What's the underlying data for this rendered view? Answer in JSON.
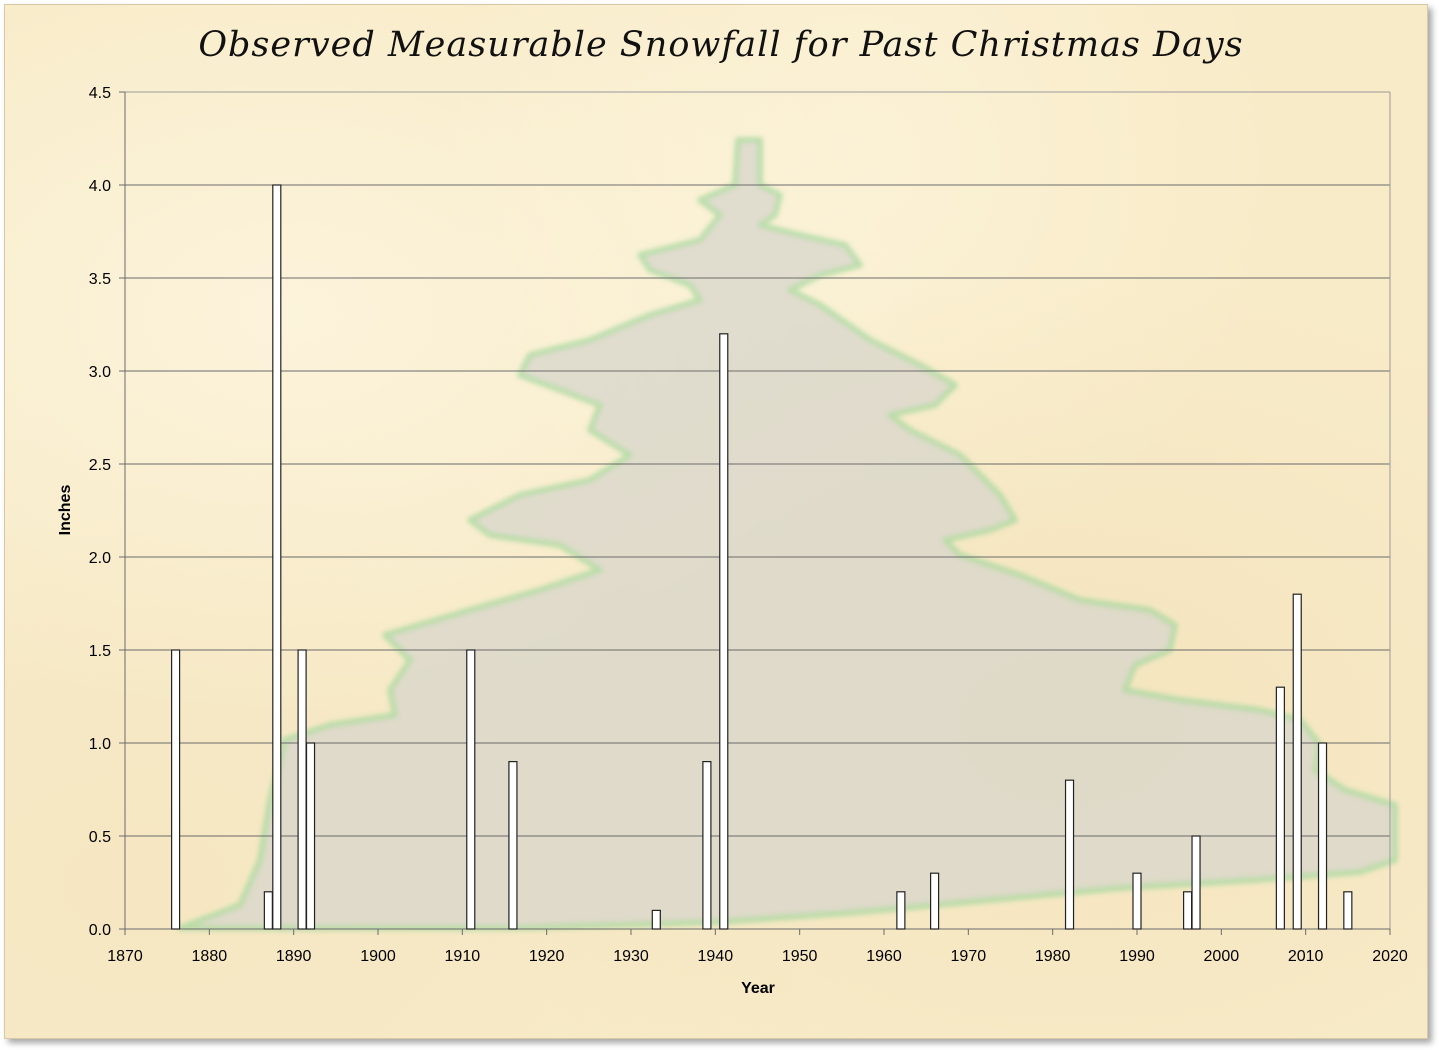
{
  "chart_data": {
    "type": "bar",
    "title": "Observed Measurable Snowfall for Past Christmas Days",
    "xlabel": "Year",
    "ylabel": "Inches",
    "xlim": [
      1870,
      2020
    ],
    "ylim": [
      0,
      4.5
    ],
    "x_ticks": [
      "1870",
      "1880",
      "1890",
      "1900",
      "1910",
      "1920",
      "1930",
      "1940",
      "1950",
      "1960",
      "1970",
      "1980",
      "1990",
      "2000",
      "2010",
      "2020"
    ],
    "y_ticks": [
      "0.0",
      "0.5",
      "1.0",
      "1.5",
      "2.0",
      "2.5",
      "3.0",
      "3.5",
      "4.0",
      "4.5"
    ],
    "grid": "horizontal",
    "legend": "none",
    "background": "parchment with faded Christmas tree image",
    "bar_color": "#ffffff",
    "bar_edge_color": "#222222",
    "series": [
      {
        "x": [
          1876,
          1887,
          1888,
          1891,
          1892,
          1911,
          1916,
          1933,
          1939,
          1941,
          1962,
          1966,
          1982,
          1990,
          1996,
          1997,
          2007,
          2009,
          2012,
          2015
        ],
        "values": [
          1.5,
          0.2,
          4.0,
          1.5,
          1.0,
          1.5,
          0.9,
          0.1,
          0.9,
          3.2,
          0.2,
          0.3,
          0.8,
          0.3,
          0.2,
          0.5,
          1.3,
          1.8,
          1.0,
          0.2
        ]
      }
    ]
  }
}
